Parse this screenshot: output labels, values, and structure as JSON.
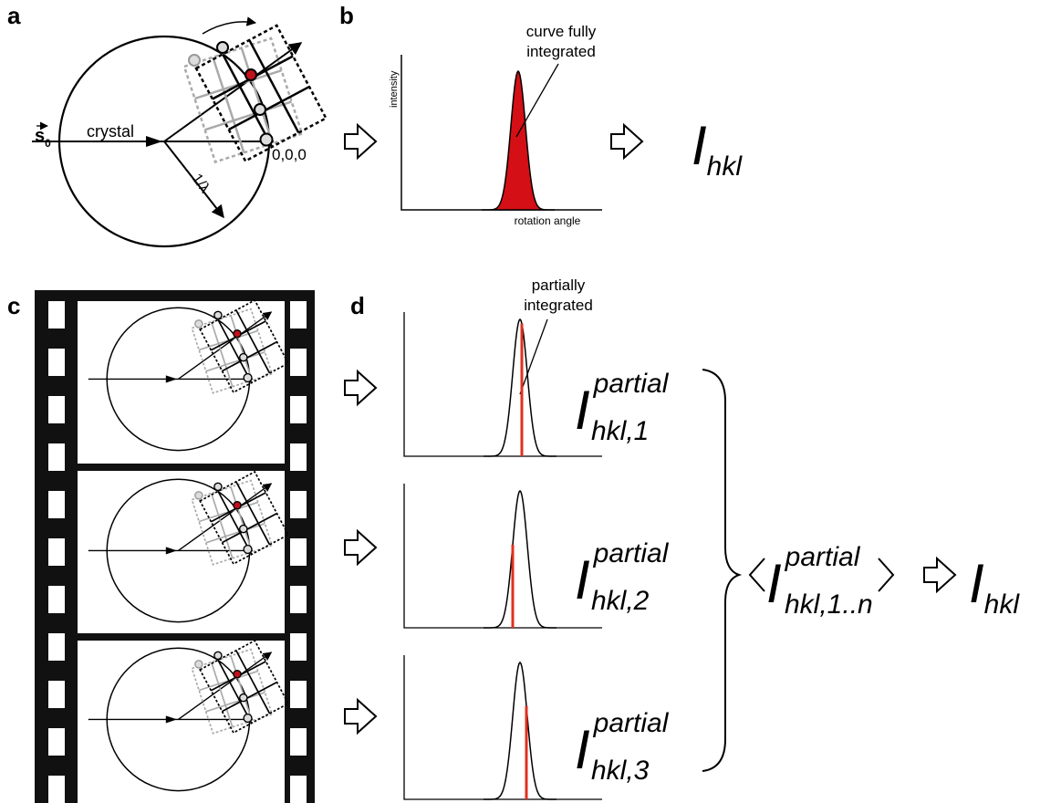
{
  "panel_labels": [
    "a",
    "b",
    "c",
    "d"
  ],
  "panel_a": {
    "beam_label": "s",
    "beam_subscript": "0",
    "crystal_label": "crystal",
    "radius_label": "1/λ",
    "origin_label": "0,0,0"
  },
  "panel_b": {
    "annotation_lines": [
      "curve fully",
      "integrated"
    ],
    "y_axis_label": "intensity",
    "x_axis_label": "rotation angle",
    "result": {
      "symbol": "I",
      "subscript": "hkl"
    }
  },
  "panel_d": {
    "annotation_lines": [
      "partially",
      "integrated"
    ],
    "partials": [
      {
        "symbol": "I",
        "superscript": "partial",
        "subscript": "hkl,1"
      },
      {
        "symbol": "I",
        "superscript": "partial",
        "subscript": "hkl,2"
      },
      {
        "symbol": "I",
        "superscript": "partial",
        "subscript": "hkl,3"
      }
    ],
    "mean": {
      "symbol": "I",
      "superscript": "partial",
      "subscript": "hkl,1..n"
    },
    "result": {
      "symbol": "I",
      "subscript": "hkl"
    }
  }
}
